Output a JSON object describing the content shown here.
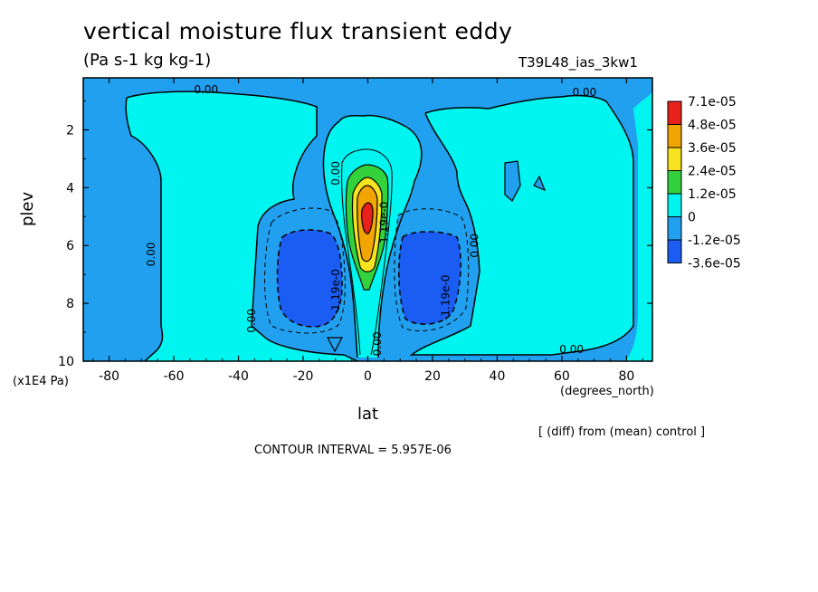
{
  "header": {
    "title": "vertical moisture flux transient eddy",
    "units": "(Pa s-1 kg kg-1)",
    "run_name": "T39L48_ias_3kw1"
  },
  "footer": {
    "x_units": "(degrees_north)",
    "diff_note": "[ (diff) from (mean) control ]",
    "contour_interval_label": "CONTOUR INTERVAL = 5.957E-06",
    "y_scale_note": "(x1E4 Pa)"
  },
  "chart_data": {
    "type": "heatmap",
    "title": "vertical moisture flux transient eddy",
    "subtitle": "(Pa s-1 kg kg-1)",
    "xlabel": "lat",
    "ylabel": "plev",
    "x_units": "(degrees_north)",
    "y_scale": "(x1E4 Pa)",
    "xlim": [
      -88,
      88
    ],
    "ylim": [
      10,
      0.2
    ],
    "x_ticks": [
      -80,
      -60,
      -40,
      -20,
      0,
      20,
      40,
      60,
      80
    ],
    "y_ticks": [
      2,
      4,
      6,
      8,
      10
    ],
    "colorbar": {
      "labels": [
        "7.1e-05",
        "4.8e-05",
        "3.6e-05",
        "2.4e-05",
        "1.2e-05",
        "0",
        "-1.2e-05",
        "-3.6e-05"
      ],
      "colors": [
        "#e8221b",
        "#f2a500",
        "#f7e320",
        "#33d23c",
        "#00f5f0",
        "#21a0ef",
        "#1b5cf3"
      ]
    },
    "contour_labels": [
      {
        "text": "0.00",
        "lat": -50,
        "plev": 0.6
      },
      {
        "text": "0.00",
        "lat": 67,
        "plev": 0.7
      },
      {
        "text": "0.00",
        "lat": -67,
        "plev": 6.3
      },
      {
        "text": "0.00",
        "lat": -36,
        "plev": 8.6
      },
      {
        "text": "0.00",
        "lat": -10,
        "plev": 3.5
      },
      {
        "text": "0.00",
        "lat": 33,
        "plev": 6.0
      },
      {
        "text": "0.00",
        "lat": 3,
        "plev": 9.4
      },
      {
        "text": "0.00",
        "lat": 63,
        "plev": 9.6
      },
      {
        "text": "-1.19e-0",
        "lat": -10,
        "plev": 7.6
      },
      {
        "text": "-1.19e-0",
        "lat": 24,
        "plev": 7.8
      },
      {
        "text": "1.19e-0",
        "lat": 5,
        "plev": 5.2
      }
    ],
    "contour_interval": "5.957E-06"
  }
}
